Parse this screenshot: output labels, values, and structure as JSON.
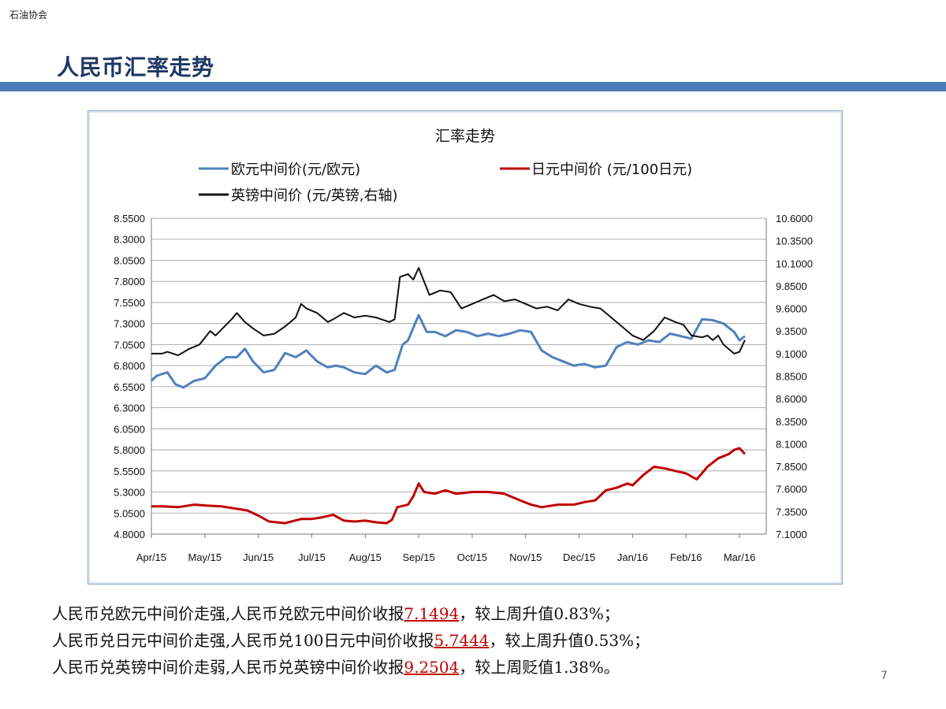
{
  "header": {
    "org": "石油协会",
    "title": "人民币汇率走势"
  },
  "notes": [
    {
      "text": "人民币兑欧元中间价走强,人民币兑欧元中间价收报",
      "value": "7.1494",
      "suffix": "，较上周升值0.83%；"
    },
    {
      "text": "人民币兑日元中间价走强,人民币兑100日元中间价收报",
      "value": "5.7444",
      "suffix": "，较上周升值0.53%；"
    },
    {
      "text": "人民币兑英镑中间价走弱,人民币兑英镑中间价收报",
      "value": "9.2504",
      "suffix": "，较上周贬值1.38%。"
    }
  ],
  "page_number": "7",
  "colors": {
    "eur": "#4f81bd",
    "jpy": "#c00000",
    "gbp": "#111111",
    "accent_bar": "#4a7ab8",
    "title": "#1f3864"
  },
  "chart_data": {
    "type": "line",
    "title": "汇率走势",
    "grid": "horizontal",
    "legend_position": "top",
    "y_left": {
      "ylim": [
        4.8,
        8.55
      ],
      "ticks": [
        "4.8000",
        "5.0500",
        "5.3000",
        "5.5500",
        "5.8000",
        "6.0500",
        "6.3000",
        "6.5500",
        "6.8000",
        "7.0500",
        "7.3000",
        "7.5500",
        "7.8000",
        "8.0500",
        "8.3000",
        "8.5500"
      ]
    },
    "y_right": {
      "ylim": [
        7.1,
        10.6
      ],
      "ticks": [
        "7.1000",
        "7.3500",
        "7.6000",
        "7.8500",
        "8.1000",
        "8.3500",
        "8.6000",
        "8.8500",
        "9.1000",
        "9.3500",
        "9.6000",
        "9.8500",
        "10.1000",
        "10.3500",
        "10.6000"
      ]
    },
    "x_ticks": [
      "Apr/15",
      "May/15",
      "Jun/15",
      "Jul/15",
      "Aug/15",
      "Sep/15",
      "Oct/15",
      "Nov/15",
      "Dec/15",
      "Jan/16",
      "Feb/16",
      "Mar/16"
    ],
    "x_range": [
      0,
      11.5
    ],
    "series": [
      {
        "name": "欧元中间价(元/欧元)",
        "axis": "left",
        "color": "#4f81bd",
        "x": [
          0,
          0.1,
          0.3,
          0.45,
          0.6,
          0.8,
          1.0,
          1.2,
          1.4,
          1.6,
          1.75,
          1.9,
          2.1,
          2.3,
          2.5,
          2.7,
          2.9,
          3.1,
          3.3,
          3.45,
          3.6,
          3.8,
          4.0,
          4.2,
          4.4,
          4.55,
          4.7,
          4.8,
          4.9,
          5.0,
          5.15,
          5.3,
          5.5,
          5.7,
          5.9,
          6.1,
          6.3,
          6.5,
          6.7,
          6.9,
          7.1,
          7.3,
          7.5,
          7.7,
          7.9,
          8.1,
          8.3,
          8.5,
          8.7,
          8.9,
          9.1,
          9.3,
          9.5,
          9.7,
          9.9,
          10.1,
          10.3,
          10.5,
          10.7,
          10.9,
          11.0,
          11.1
        ],
        "values": [
          6.62,
          6.68,
          6.72,
          6.58,
          6.54,
          6.62,
          6.65,
          6.8,
          6.9,
          6.9,
          7.0,
          6.85,
          6.72,
          6.75,
          6.95,
          6.9,
          6.98,
          6.85,
          6.78,
          6.8,
          6.78,
          6.72,
          6.7,
          6.8,
          6.72,
          6.75,
          7.05,
          7.1,
          7.25,
          7.4,
          7.2,
          7.2,
          7.15,
          7.22,
          7.2,
          7.15,
          7.18,
          7.15,
          7.18,
          7.22,
          7.2,
          6.98,
          6.9,
          6.85,
          6.8,
          6.82,
          6.78,
          6.8,
          7.02,
          7.08,
          7.05,
          7.1,
          7.08,
          7.18,
          7.15,
          7.12,
          7.35,
          7.34,
          7.3,
          7.2,
          7.1,
          7.15
        ]
      },
      {
        "name": "日元中间价 (元/100日元)",
        "axis": "left",
        "color": "#c00000",
        "x": [
          0,
          0.2,
          0.5,
          0.8,
          1.0,
          1.3,
          1.6,
          1.8,
          2.0,
          2.2,
          2.5,
          2.8,
          3.0,
          3.2,
          3.4,
          3.6,
          3.8,
          4.0,
          4.2,
          4.4,
          4.5,
          4.6,
          4.8,
          4.9,
          5.0,
          5.1,
          5.3,
          5.5,
          5.7,
          6.0,
          6.3,
          6.6,
          6.9,
          7.1,
          7.3,
          7.6,
          7.9,
          8.1,
          8.3,
          8.5,
          8.7,
          8.9,
          9.0,
          9.2,
          9.4,
          9.6,
          9.8,
          10.0,
          10.2,
          10.4,
          10.6,
          10.8,
          10.9,
          11.0,
          11.1
        ],
        "values": [
          5.13,
          5.13,
          5.12,
          5.15,
          5.14,
          5.13,
          5.1,
          5.08,
          5.02,
          4.95,
          4.93,
          4.98,
          4.98,
          5.0,
          5.03,
          4.96,
          4.95,
          4.96,
          4.94,
          4.93,
          4.97,
          5.12,
          5.15,
          5.25,
          5.4,
          5.3,
          5.28,
          5.32,
          5.28,
          5.3,
          5.3,
          5.28,
          5.2,
          5.15,
          5.12,
          5.15,
          5.15,
          5.18,
          5.2,
          5.32,
          5.35,
          5.4,
          5.38,
          5.5,
          5.6,
          5.58,
          5.55,
          5.52,
          5.45,
          5.6,
          5.7,
          5.75,
          5.8,
          5.82,
          5.75
        ]
      },
      {
        "name": "英镑中间价 (元/英镑,右轴)",
        "axis": "right",
        "color": "#111111",
        "x": [
          0,
          0.2,
          0.3,
          0.5,
          0.7,
          0.9,
          1.1,
          1.2,
          1.4,
          1.5,
          1.6,
          1.75,
          1.9,
          2.1,
          2.3,
          2.5,
          2.7,
          2.8,
          2.9,
          3.1,
          3.3,
          3.4,
          3.6,
          3.8,
          4.0,
          4.2,
          4.3,
          4.4,
          4.45,
          4.55,
          4.65,
          4.8,
          4.9,
          5.0,
          5.2,
          5.4,
          5.6,
          5.8,
          6.0,
          6.2,
          6.4,
          6.6,
          6.8,
          7.0,
          7.2,
          7.4,
          7.6,
          7.8,
          8.0,
          8.2,
          8.4,
          8.6,
          8.8,
          9.0,
          9.2,
          9.4,
          9.6,
          9.8,
          9.95,
          10.1,
          10.3,
          10.4,
          10.5,
          10.6,
          10.7,
          10.8,
          10.9,
          11.0,
          11.1
        ],
        "values": [
          9.1,
          9.1,
          9.12,
          9.08,
          9.15,
          9.2,
          9.35,
          9.3,
          9.42,
          9.48,
          9.55,
          9.45,
          9.38,
          9.3,
          9.32,
          9.4,
          9.5,
          9.65,
          9.6,
          9.55,
          9.45,
          9.48,
          9.55,
          9.5,
          9.52,
          9.5,
          9.48,
          9.46,
          9.45,
          9.48,
          9.95,
          9.98,
          9.92,
          10.05,
          9.75,
          9.8,
          9.78,
          9.6,
          9.65,
          9.7,
          9.75,
          9.68,
          9.7,
          9.65,
          9.6,
          9.62,
          9.58,
          9.7,
          9.65,
          9.62,
          9.6,
          9.5,
          9.4,
          9.3,
          9.25,
          9.35,
          9.5,
          9.45,
          9.42,
          9.3,
          9.28,
          9.3,
          9.25,
          9.3,
          9.2,
          9.15,
          9.1,
          9.12,
          9.25
        ]
      }
    ]
  }
}
